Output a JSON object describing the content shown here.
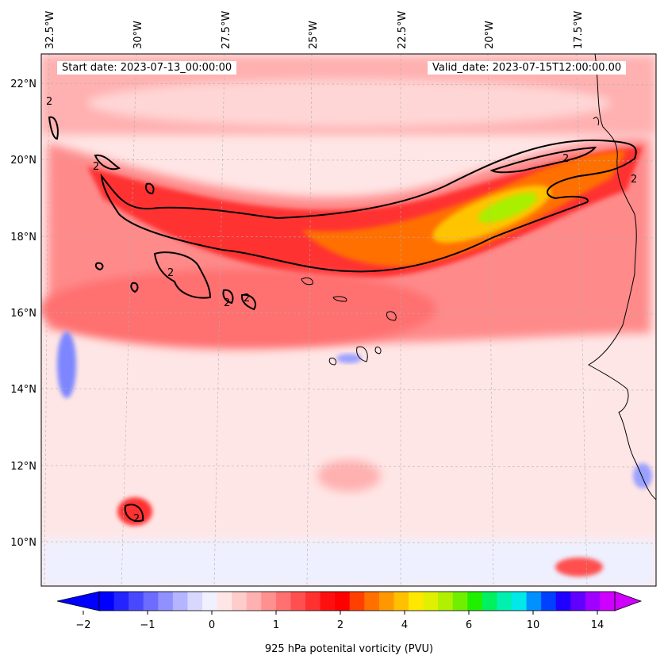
{
  "header": {
    "start_date": "Start date: 2023-07-13_00:00:00",
    "valid_date": "Valid_date: 2023-07-15T12:00:00.00"
  },
  "map": {
    "lon_labels": [
      "32.5°W",
      "30°W",
      "27.5°W",
      "25°W",
      "22.5°W",
      "20°W",
      "17.5°W"
    ],
    "lat_labels": [
      "22°N",
      "20°N",
      "18°N",
      "16°N",
      "14°N",
      "12°N",
      "10°N"
    ],
    "contour_level_label": "2",
    "field_colors": {
      "background": "#ffe6e6",
      "light_pink": "#ffc4c4",
      "pink": "#ff9a9a",
      "red": "#ff4444",
      "deep_red": "#ff1a1a",
      "orange": "#ff8c00",
      "yellow": "#ffd800",
      "green": "#8ef000",
      "blue_negative": "#7d86ff",
      "pale_blue": "#e8ecff"
    }
  },
  "colorbar": {
    "label": "925 hPa potenital vorticity (PVU)",
    "ticks": [
      "−2",
      "−1",
      "0",
      "1",
      "2",
      "4",
      "6",
      "10",
      "14"
    ],
    "colors": [
      "#0000ff",
      "#2424ff",
      "#4848ff",
      "#6c6cff",
      "#9090ff",
      "#b4b4ff",
      "#d8d8ff",
      "#f0f0ff",
      "#ffe6e6",
      "#ffcccc",
      "#ffb0b0",
      "#ff9090",
      "#ff7070",
      "#ff5050",
      "#ff3030",
      "#ff1010",
      "#ff0000",
      "#ff4000",
      "#ff7000",
      "#ff9800",
      "#ffc000",
      "#ffe800",
      "#e0f000",
      "#b0f000",
      "#70f000",
      "#20f000",
      "#00f060",
      "#00f0b0",
      "#00e8e8",
      "#0090ff",
      "#0040ff",
      "#2000ff",
      "#6000ff",
      "#a000ff",
      "#d000ff"
    ]
  }
}
